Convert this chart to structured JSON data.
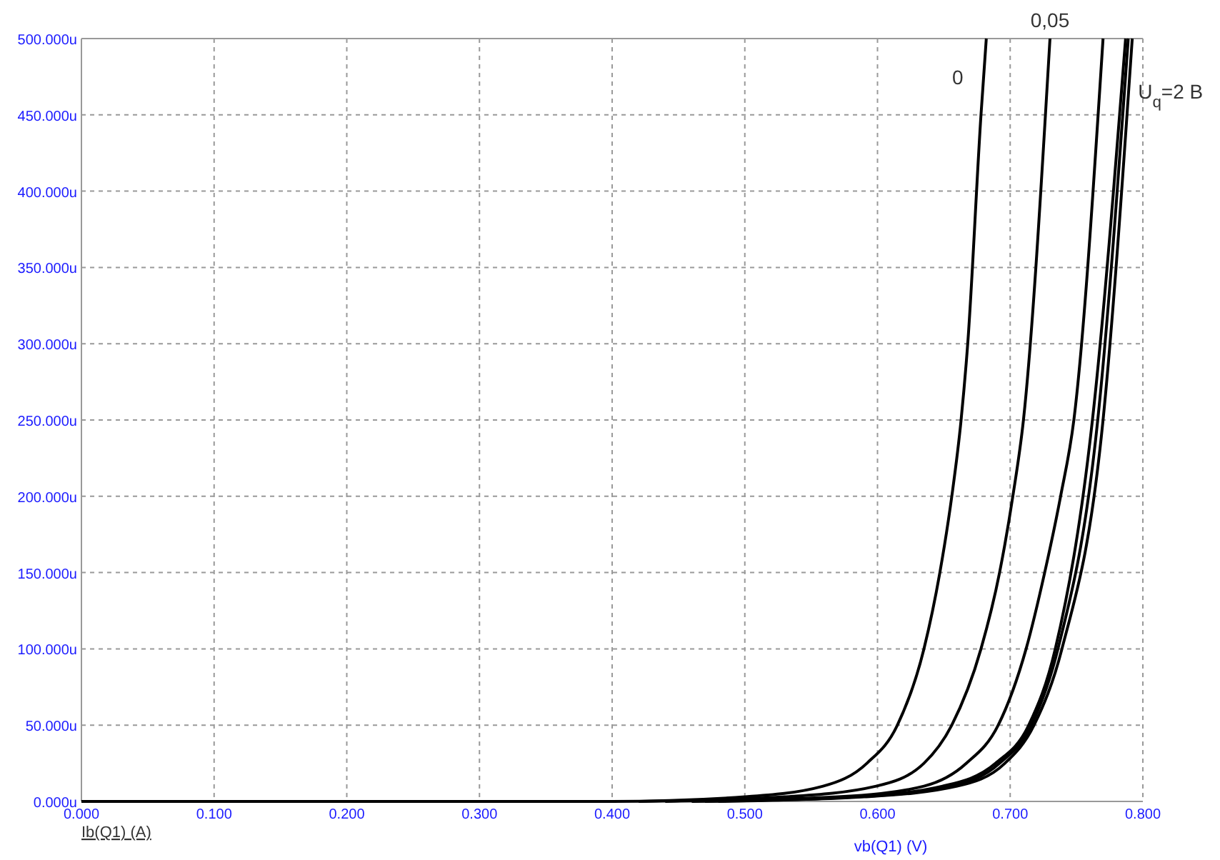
{
  "chart_data": {
    "type": "line",
    "xlabel": "vb(Q1) (V)",
    "annotations": [
      "Ib(Q1) (A)"
    ],
    "xlim": [
      0,
      0.8
    ],
    "ylim": [
      0,
      500
    ],
    "xticks": [
      {
        "value": 0,
        "label": "0.000"
      },
      {
        "value": 0.1,
        "label": "0.100"
      },
      {
        "value": 0.2,
        "label": "0.200"
      },
      {
        "value": 0.3,
        "label": "0.300"
      },
      {
        "value": 0.4,
        "label": "0.400"
      },
      {
        "value": 0.5,
        "label": "0.500"
      },
      {
        "value": 0.6,
        "label": "0.600"
      },
      {
        "value": 0.7,
        "label": "0.700"
      },
      {
        "value": 0.8,
        "label": "0.800"
      }
    ],
    "yticks": [
      {
        "value": 0,
        "label": "0.000u"
      },
      {
        "value": 50,
        "label": "50.000u"
      },
      {
        "value": 100,
        "label": "100.000u"
      },
      {
        "value": 150,
        "label": "150.000u"
      },
      {
        "value": 200,
        "label": "200.000u"
      },
      {
        "value": 250,
        "label": "250.000u"
      },
      {
        "value": 300,
        "label": "300.000u"
      },
      {
        "value": 350,
        "label": "350.000u"
      },
      {
        "value": 400,
        "label": "400.000u"
      },
      {
        "value": 450,
        "label": "450.000u"
      },
      {
        "value": 500,
        "label": "500.000u"
      }
    ],
    "grid": true,
    "marker": "none",
    "line_style": "solid",
    "series": [
      {
        "name": "0",
        "color": "#000000",
        "x": [
          0,
          0.4,
          0.5,
          0.559,
          0.592,
          0.615,
          0.635,
          0.647,
          0.656,
          0.663,
          0.668,
          0.678,
          0.682
        ],
        "values": [
          0,
          0,
          3,
          10,
          25,
          50,
          100,
          150,
          200,
          250,
          300,
          450,
          500
        ]
      },
      {
        "name": "0,05",
        "color": "#000000",
        "x": [
          0.42,
          0.53,
          0.599,
          0.635,
          0.656,
          0.678,
          0.692,
          0.702,
          0.71,
          0.73
        ],
        "values": [
          0,
          3,
          10,
          25,
          50,
          100,
          150,
          200,
          250,
          500
        ]
      },
      {
        "color": "#000000",
        "x": [
          0.44,
          0.57,
          0.635,
          0.667,
          0.691,
          0.712,
          0.726,
          0.738,
          0.748,
          0.77
        ],
        "values": [
          0,
          3,
          10,
          25,
          50,
          100,
          150,
          200,
          250,
          500
        ]
      },
      {
        "color": "#000000",
        "x": [
          0.46,
          0.58,
          0.649,
          0.689,
          0.714,
          0.734,
          0.762,
          0.787
        ],
        "values": [
          0,
          3,
          10,
          25,
          50,
          100,
          250,
          500
        ]
      },
      {
        "color": "#000000",
        "x": [
          0.47,
          0.585,
          0.655,
          0.692,
          0.716,
          0.736,
          0.766,
          0.789
        ],
        "values": [
          0,
          3,
          10,
          25,
          50,
          100,
          250,
          500
        ]
      },
      {
        "name": "U$_{q}$=2 B",
        "color": "#000000",
        "x": [
          0.48,
          0.59,
          0.66,
          0.696,
          0.718,
          0.739,
          0.77,
          0.792
        ],
        "values": [
          0,
          3,
          10,
          25,
          50,
          100,
          250,
          500
        ]
      }
    ]
  }
}
